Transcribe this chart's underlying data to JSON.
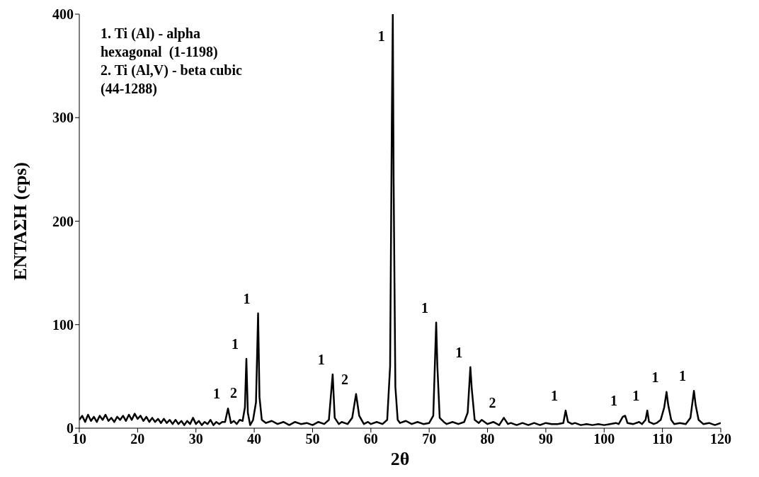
{
  "chart_data": {
    "type": "line",
    "xlabel": "2θ",
    "ylabel": "ΕΝΤΑΣΗ (cps)",
    "xlim": [
      10,
      120
    ],
    "ylim": [
      0,
      400
    ],
    "xticks": [
      10,
      20,
      30,
      40,
      50,
      60,
      70,
      80,
      90,
      100,
      110,
      120
    ],
    "yticks": [
      0,
      100,
      200,
      300,
      400
    ],
    "annotations": [
      "1. Ti (Al) - alpha hexagonal  (1-1198)",
      "2. Ti (Al,V) - beta cubic (44-1288)",
      {
        "text": "1",
        "x": 35.5,
        "y": 19
      },
      {
        "text": "1",
        "x": 38.65,
        "y": 67
      },
      {
        "text": "2",
        "x": 38.4,
        "y": 20
      },
      {
        "text": "1",
        "x": 40.66,
        "y": 111
      },
      {
        "text": "1",
        "x": 53.45,
        "y": 52
      },
      {
        "text": "2",
        "x": 57.46,
        "y": 33
      },
      {
        "text": "1",
        "x": 63.76,
        "y": 400
      },
      {
        "text": "1",
        "x": 71.2,
        "y": 102
      },
      {
        "text": "1",
        "x": 77.06,
        "y": 59
      },
      {
        "text": "2",
        "x": 82.8,
        "y": 10
      },
      {
        "text": "1",
        "x": 93.4,
        "y": 17
      },
      {
        "text": "1",
        "x": 103.6,
        "y": 12
      },
      {
        "text": "1",
        "x": 107.4,
        "y": 17
      },
      {
        "text": "1",
        "x": 110.7,
        "y": 35
      },
      {
        "text": "1",
        "x": 115.4,
        "y": 36
      }
    ],
    "x": [
      10,
      10.5,
      11,
      11.5,
      12,
      12.5,
      13,
      13.5,
      14,
      14.5,
      15,
      15.5,
      16,
      16.5,
      17,
      17.5,
      18,
      18.5,
      19,
      19.5,
      20,
      20.5,
      21,
      21.5,
      22,
      22.5,
      23,
      23.5,
      24,
      24.5,
      25,
      25.5,
      26,
      26.5,
      27,
      27.5,
      28,
      28.5,
      29,
      29.5,
      30,
      30.5,
      31,
      31.5,
      32,
      32.5,
      33,
      33.5,
      34,
      34.5,
      35,
      35.5,
      36,
      36.5,
      37,
      37.5,
      38,
      38.4,
      38.65,
      38.9,
      39.3,
      39.8,
      40.3,
      40.66,
      40.9,
      41.3,
      42,
      43,
      44,
      45,
      46,
      47,
      48,
      49,
      50,
      51,
      52,
      52.8,
      53.45,
      53.8,
      54.5,
      55,
      56,
      56.8,
      57.46,
      58,
      58.8,
      59.5,
      60,
      61,
      62,
      62.8,
      63.3,
      63.6,
      63.76,
      63.9,
      64.2,
      64.6,
      65,
      66,
      67,
      68,
      69,
      70,
      70.7,
      71.2,
      71.4,
      71.8,
      72.5,
      73,
      74,
      75,
      76,
      76.6,
      77.06,
      77.3,
      77.8,
      78.5,
      79,
      80,
      81,
      82,
      82.8,
      83.5,
      84,
      85,
      86,
      87,
      88,
      89,
      90,
      91,
      92,
      93,
      93.4,
      93.8,
      94.5,
      95,
      96,
      97,
      98,
      99,
      100,
      101,
      102,
      102.5,
      103.2,
      103.6,
      104,
      105,
      106,
      106.5,
      107.1,
      107.4,
      107.7,
      108.5,
      109,
      109.7,
      110.3,
      110.7,
      111,
      111.5,
      112,
      113,
      114,
      114.8,
      115.4,
      115.7,
      116.2,
      117,
      118,
      119,
      120
    ],
    "series": [
      {
        "color": "#000000",
        "values": [
          8,
          12,
          6,
          13,
          7,
          11,
          6,
          12,
          8,
          13,
          7,
          10,
          6,
          11,
          8,
          12,
          7,
          13,
          8,
          14,
          9,
          12,
          7,
          11,
          6,
          10,
          6,
          9,
          5,
          9,
          5,
          8,
          4,
          8,
          4,
          7,
          3,
          7,
          4,
          10,
          4,
          7,
          3,
          6,
          4,
          8,
          3,
          6,
          4,
          6,
          6,
          19,
          5,
          7,
          4,
          8,
          7,
          20,
          67,
          15,
          3,
          8,
          25,
          111,
          30,
          8,
          5,
          7,
          4,
          6,
          3,
          6,
          4,
          5,
          3,
          6,
          4,
          8,
          52,
          10,
          4,
          6,
          4,
          10,
          33,
          12,
          4,
          6,
          4,
          6,
          4,
          8,
          60,
          300,
          400,
          240,
          40,
          8,
          5,
          7,
          4,
          6,
          4,
          5,
          12,
          102,
          60,
          10,
          6,
          4,
          6,
          4,
          6,
          15,
          59,
          38,
          8,
          5,
          8,
          4,
          6,
          3,
          10,
          4,
          5,
          3,
          5,
          3,
          5,
          3,
          5,
          4,
          4,
          5,
          17,
          6,
          4,
          5,
          3,
          4,
          3,
          4,
          3,
          4,
          5,
          4,
          11,
          12,
          5,
          4,
          6,
          4,
          8,
          17,
          6,
          4,
          5,
          8,
          20,
          35,
          22,
          8,
          4,
          5,
          4,
          10,
          36,
          22,
          8,
          4,
          5,
          3,
          5
        ]
      }
    ]
  }
}
